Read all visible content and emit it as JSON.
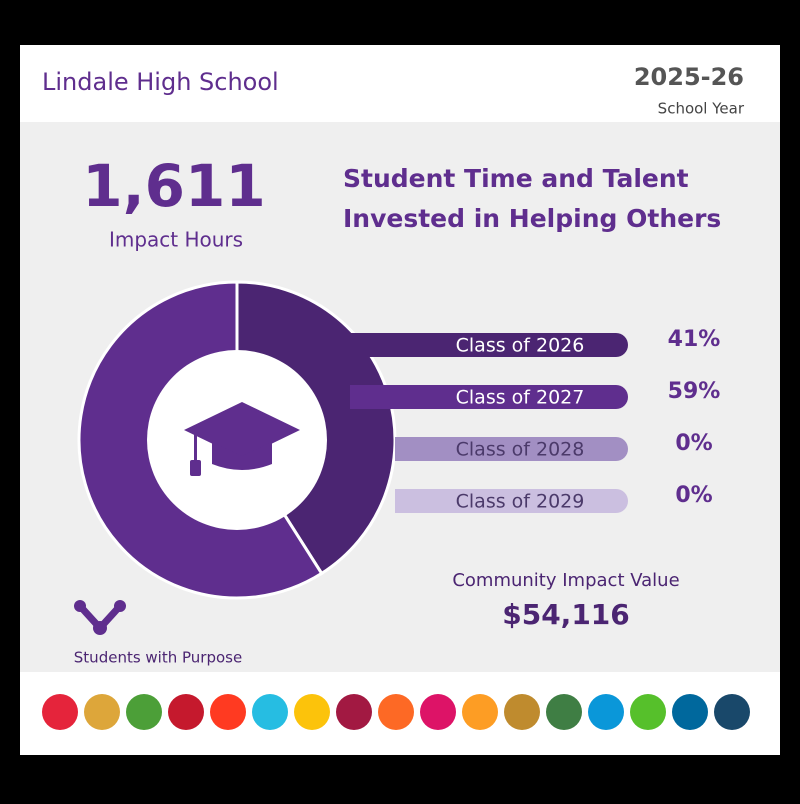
{
  "header": {
    "school": "Lindale High School",
    "year": "2025-26",
    "year_label": "School Year"
  },
  "impact": {
    "hours": "1,611",
    "hours_label": "Impact Hours",
    "headline_1": "Student Time and Talent",
    "headline_2": "Invested in Helping Others",
    "value_label": "Community Impact Value",
    "value": "$54,116"
  },
  "brand": "Students with Purpose",
  "chart_data": {
    "type": "pie",
    "categories": [
      "Class of 2026",
      "Class of 2027",
      "Class of 2028",
      "Class of 2029"
    ],
    "values": [
      41,
      59,
      0,
      0
    ],
    "value_labels": [
      "41%",
      "59%",
      "0%",
      "0%"
    ],
    "colors": [
      "#4b2572",
      "#5f2e8e",
      "#a28fc3",
      "#cbbfe0"
    ]
  }
}
